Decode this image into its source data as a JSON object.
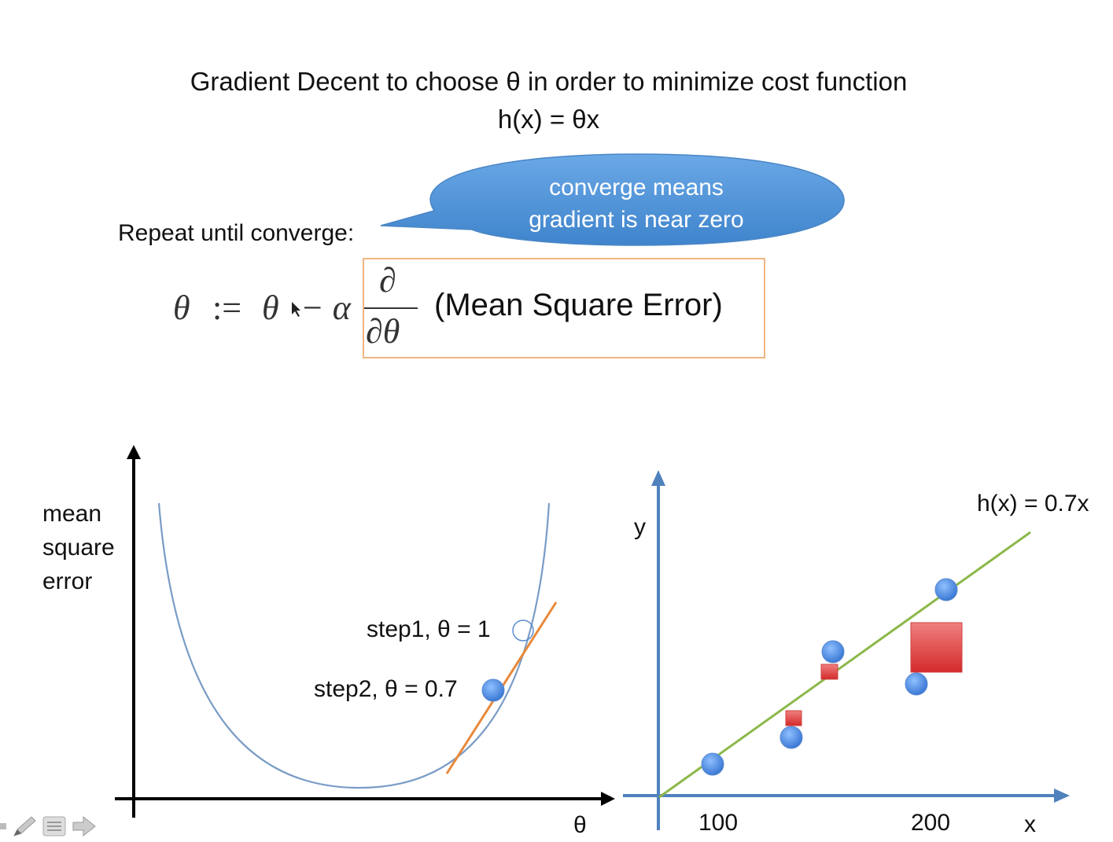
{
  "slide": {
    "title_line1": "Gradient Decent to choose θ in order to minimize cost function",
    "title_line2": "h(x) = θx",
    "repeat_label": "Repeat until converge:",
    "bubble_line1": "converge means",
    "bubble_line2": "gradient is near zero",
    "formula": {
      "theta": "θ",
      "assign": ":=",
      "theta2": "θ",
      "minus_alpha": "− α",
      "partial": "∂",
      "partial_theta": "∂θ",
      "mse": "(Mean Square Error)"
    }
  },
  "left_plot": {
    "y_label": [
      "mean",
      "square",
      "error"
    ],
    "x_label": "θ",
    "step1_label": "step1, θ = 1",
    "step2_label": "step2, θ = 0.7"
  },
  "right_plot": {
    "y_label": "y",
    "x_label": "x",
    "tick_100": "100",
    "tick_200": "200",
    "line_label": "h(x) = 0.7x"
  },
  "colors": {
    "bubble": "#5b9bd5",
    "curve": "#7a9cc6",
    "tangent": "#e8893a",
    "axis_blue": "#4f81bd",
    "fit_line": "#8cb84a",
    "point": "#4f8fe0",
    "error_square": "#e03c3c",
    "formula_border": "#f0b581"
  },
  "toolbar": {
    "pen_icon": "pen-icon",
    "menu_icon": "menu-icon",
    "next_icon": "arrow-right-icon"
  }
}
